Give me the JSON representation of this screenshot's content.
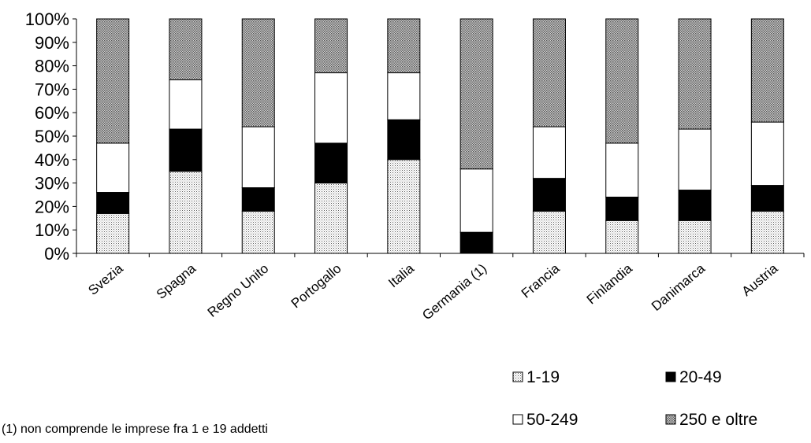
{
  "chart_data": {
    "type": "bar",
    "stacked": true,
    "orientation": "vertical",
    "categories": [
      "Svezia",
      "Spagna",
      "Regno Unito",
      "Portogallo",
      "Italia",
      "Germania (1)",
      "Francia",
      "Finlandia",
      "Danimarca",
      "Austria"
    ],
    "series": [
      {
        "name": "1-19",
        "pattern": "light-dots",
        "values": [
          17,
          35,
          18,
          30,
          40,
          0,
          18,
          14,
          14,
          18
        ]
      },
      {
        "name": "20-49",
        "pattern": "solid-black",
        "values": [
          9,
          18,
          10,
          17,
          17,
          9,
          14,
          10,
          13,
          11
        ]
      },
      {
        "name": "50-249",
        "pattern": "white",
        "values": [
          21,
          21,
          26,
          30,
          20,
          27,
          22,
          23,
          26,
          27
        ]
      },
      {
        "name": "250 e oltre",
        "pattern": "dense-dots",
        "values": [
          53,
          26,
          46,
          23,
          23,
          64,
          46,
          53,
          47,
          44
        ]
      }
    ],
    "yticks": [
      "0%",
      "10%",
      "20%",
      "30%",
      "40%",
      "50%",
      "60%",
      "70%",
      "80%",
      "90%",
      "100%"
    ],
    "ylim": [
      0,
      100
    ],
    "grid": false,
    "legend_position": "bottom-right"
  },
  "footnote": "(1) non comprende le imprese fra 1 e 19 addetti",
  "colors": {
    "black": "#000000",
    "white": "#ffffff"
  }
}
